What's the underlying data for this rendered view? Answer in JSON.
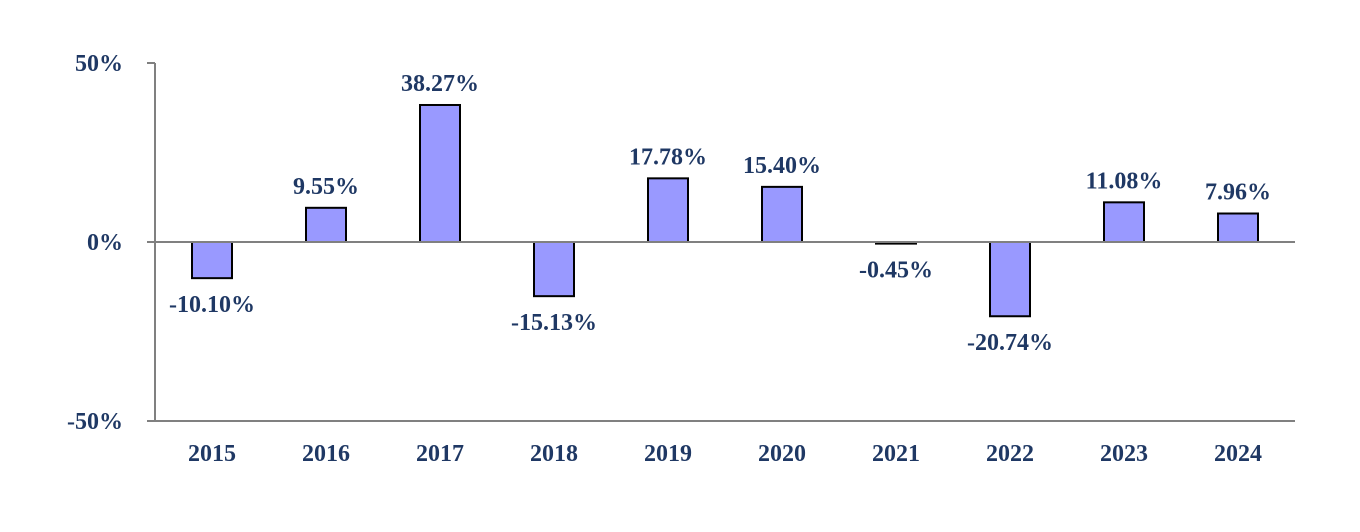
{
  "chart_data": {
    "type": "bar",
    "categories": [
      "2015",
      "2016",
      "2017",
      "2018",
      "2019",
      "2020",
      "2021",
      "2022",
      "2023",
      "2024"
    ],
    "values": [
      -10.1,
      9.55,
      38.27,
      -15.13,
      17.78,
      15.4,
      -0.45,
      -20.74,
      11.08,
      7.96
    ],
    "value_labels": [
      "-10.10%",
      "9.55%",
      "38.27%",
      "-15.13%",
      "17.78%",
      "15.40%",
      "-0.45%",
      "-20.74%",
      "11.08%",
      "7.96%"
    ],
    "ylim": [
      -50,
      50
    ],
    "y_ticks": [
      50,
      0,
      -50
    ],
    "y_tick_labels": [
      "50%",
      "0%",
      "-50%"
    ],
    "grid": false,
    "legend": "none",
    "bar_color": "#9999ff",
    "bar_border_color": "#000000",
    "label_color": "#1f3864",
    "axis_color": "#808080"
  }
}
